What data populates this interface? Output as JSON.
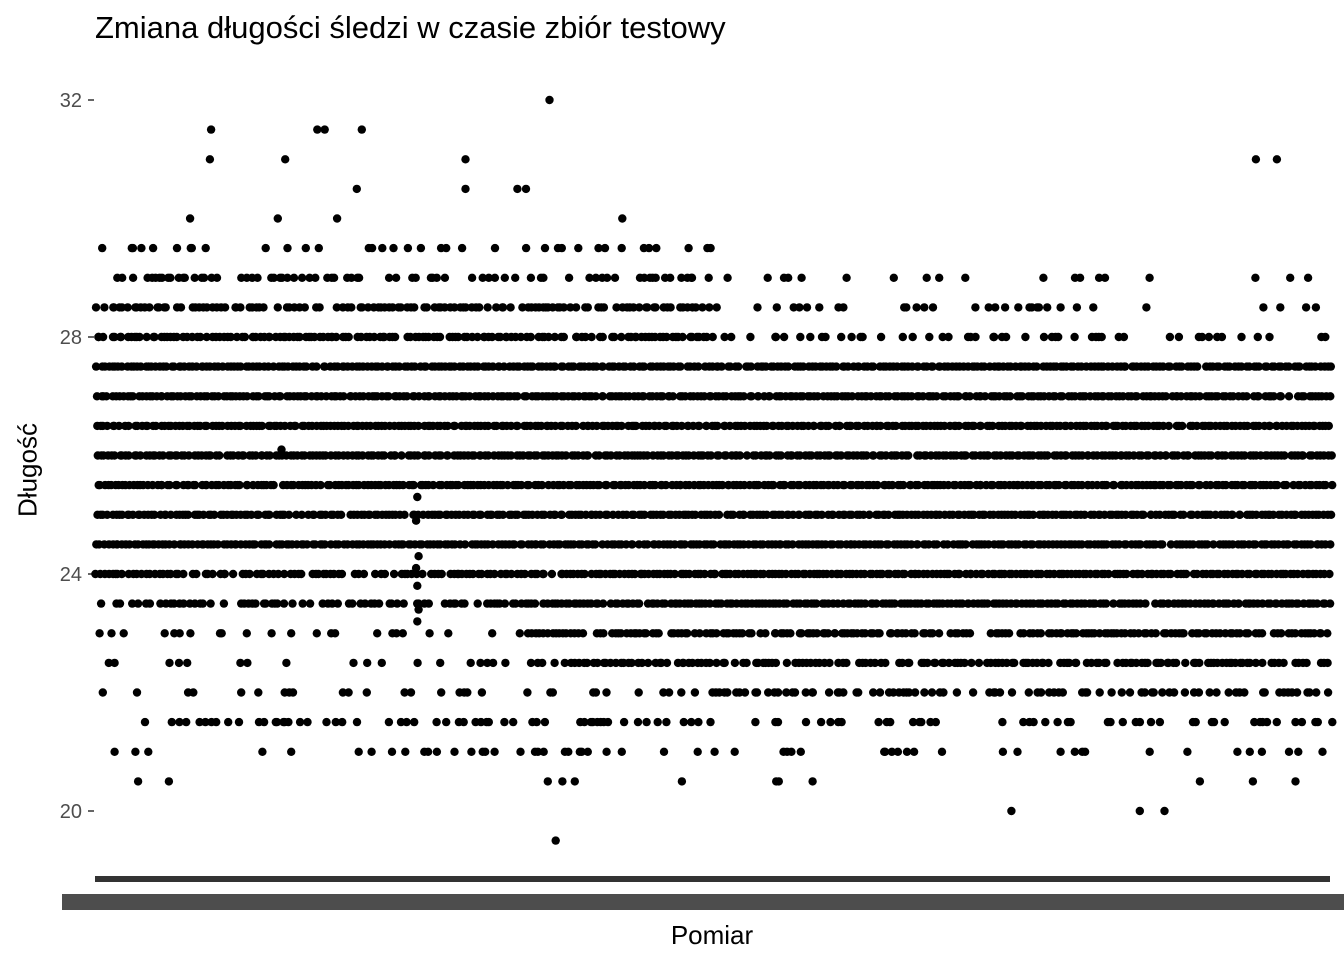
{
  "chart_data": {
    "type": "scatter",
    "title": "Zmiana długości śledzi w czasie zbiór testowy",
    "xlabel": "Pomiar",
    "ylabel": "Długość",
    "ylim": [
      18.8,
      32.3
    ],
    "y_ticks": [
      "20",
      "24",
      "28",
      "32"
    ],
    "x_ticks": "dense overlapping measurement index labels (unreadable)",
    "grid": false,
    "point_color": "#000000",
    "x_range": [
      0,
      1000
    ],
    "series": [
      {
        "bands": [
          {
            "y": 27.5,
            "from": 0,
            "to": 1000,
            "density": 0.98
          },
          {
            "y": 27.0,
            "from": 0,
            "to": 1000,
            "density": 0.98
          },
          {
            "y": 26.5,
            "from": 0,
            "to": 1000,
            "density": 0.98
          },
          {
            "y": 26.0,
            "from": 0,
            "to": 1000,
            "density": 0.98
          },
          {
            "y": 25.5,
            "from": 0,
            "to": 1000,
            "density": 0.98
          },
          {
            "y": 25.0,
            "from": 0,
            "to": 1000,
            "density": 0.98
          },
          {
            "y": 24.5,
            "from": 0,
            "to": 1000,
            "density": 0.98
          },
          {
            "y": 28.0,
            "from": 0,
            "to": 500,
            "density": 0.9
          },
          {
            "y": 28.0,
            "from": 500,
            "to": 1000,
            "density": 0.3
          },
          {
            "y": 28.5,
            "from": 0,
            "to": 500,
            "density": 0.7
          },
          {
            "y": 28.5,
            "from": 500,
            "to": 1000,
            "density": 0.15
          },
          {
            "y": 29.0,
            "from": 0,
            "to": 500,
            "density": 0.45
          },
          {
            "y": 29.0,
            "from": 500,
            "to": 1000,
            "density": 0.06
          },
          {
            "y": 29.5,
            "from": 0,
            "to": 500,
            "density": 0.2
          },
          {
            "y": 24.0,
            "from": 0,
            "to": 400,
            "density": 0.75
          },
          {
            "y": 24.0,
            "from": 400,
            "to": 1000,
            "density": 0.98
          },
          {
            "y": 23.5,
            "from": 0,
            "to": 350,
            "density": 0.6
          },
          {
            "y": 23.5,
            "from": 350,
            "to": 1000,
            "density": 0.95
          },
          {
            "y": 23.0,
            "from": 0,
            "to": 350,
            "density": 0.25
          },
          {
            "y": 23.0,
            "from": 350,
            "to": 1000,
            "density": 0.85
          },
          {
            "y": 22.5,
            "from": 0,
            "to": 350,
            "density": 0.15
          },
          {
            "y": 22.5,
            "from": 350,
            "to": 1000,
            "density": 0.75
          },
          {
            "y": 22.0,
            "from": 0,
            "to": 500,
            "density": 0.2
          },
          {
            "y": 22.0,
            "from": 500,
            "to": 1000,
            "density": 0.55
          },
          {
            "y": 21.5,
            "from": 0,
            "to": 1000,
            "density": 0.3
          },
          {
            "y": 21.0,
            "from": 0,
            "to": 1000,
            "density": 0.2
          },
          {
            "y": 20.5,
            "from": 0,
            "to": 1000,
            "density": 0.04
          }
        ],
        "outliers": [
          {
            "x": 368,
            "y": 32.0
          },
          {
            "x": 94,
            "y": 31.5
          },
          {
            "x": 180,
            "y": 31.5
          },
          {
            "x": 186,
            "y": 31.5
          },
          {
            "x": 216,
            "y": 31.5
          },
          {
            "x": 940,
            "y": 31.0
          },
          {
            "x": 957,
            "y": 31.0
          },
          {
            "x": 93,
            "y": 31.0
          },
          {
            "x": 154,
            "y": 31.0
          },
          {
            "x": 300,
            "y": 31.0
          },
          {
            "x": 212,
            "y": 30.5
          },
          {
            "x": 300,
            "y": 30.5
          },
          {
            "x": 342,
            "y": 30.5
          },
          {
            "x": 349,
            "y": 30.5
          },
          {
            "x": 77,
            "y": 30.0
          },
          {
            "x": 148,
            "y": 30.0
          },
          {
            "x": 196,
            "y": 30.0
          },
          {
            "x": 427,
            "y": 30.0
          },
          {
            "x": 151,
            "y": 26.1
          },
          {
            "x": 261,
            "y": 25.3
          },
          {
            "x": 262,
            "y": 24.3
          },
          {
            "x": 260,
            "y": 24.1
          },
          {
            "x": 261,
            "y": 23.8
          },
          {
            "x": 262,
            "y": 23.4
          },
          {
            "x": 261,
            "y": 23.2
          },
          {
            "x": 260,
            "y": 24.9
          },
          {
            "x": 373,
            "y": 19.5
          },
          {
            "x": 742,
            "y": 20.0
          },
          {
            "x": 866,
            "y": 20.0
          },
          {
            "x": 846,
            "y": 20.0
          }
        ]
      }
    ]
  }
}
